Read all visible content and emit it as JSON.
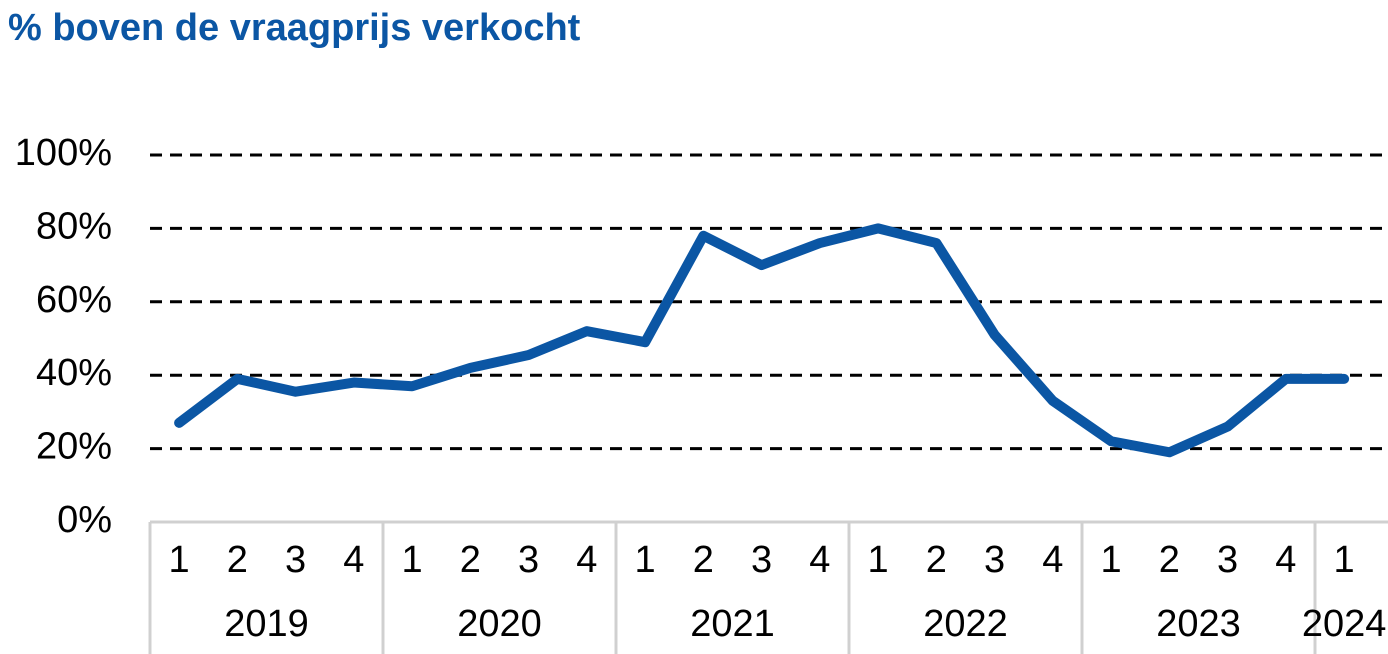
{
  "chart_data": {
    "type": "line",
    "title": "% boven de vraagprijs verkocht",
    "categories": [
      "1",
      "2",
      "3",
      "4",
      "1",
      "2",
      "3",
      "4",
      "1",
      "2",
      "3",
      "4",
      "1",
      "2",
      "3",
      "4",
      "1",
      "2",
      "3",
      "4",
      "1"
    ],
    "groups": [
      "2019",
      "2020",
      "2021",
      "2022",
      "2023",
      "2024"
    ],
    "series": [
      {
        "name": "% boven de vraagprijs verkocht",
        "color": "#0b56a4",
        "values": [
          27,
          39,
          35.5,
          38,
          37,
          42,
          45.5,
          52,
          49,
          78,
          70,
          76,
          80,
          76,
          51,
          33,
          22,
          19,
          26,
          39,
          39
        ]
      }
    ],
    "ylim": [
      0,
      100
    ],
    "yticks": [
      {
        "value": 0,
        "label": "0%"
      },
      {
        "value": 20,
        "label": "20%"
      },
      {
        "value": 40,
        "label": "40%"
      },
      {
        "value": 60,
        "label": "60%"
      },
      {
        "value": 80,
        "label": "80%"
      },
      {
        "value": 100,
        "label": "100%"
      }
    ],
    "grid": true
  }
}
